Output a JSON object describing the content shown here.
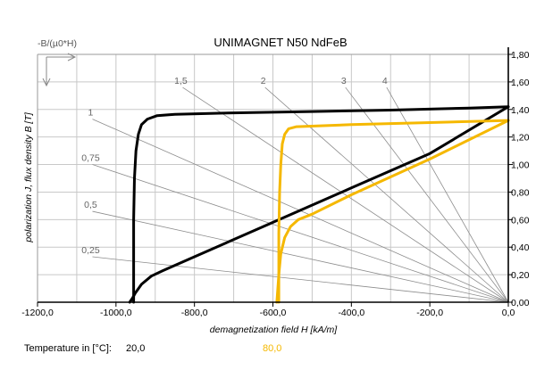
{
  "chart_data": {
    "type": "line",
    "title": "UNIMAGNET N50 NdFeB",
    "y_top_label": "-B/(µ0*H)",
    "xlabel": "demagnetization field H [kA/m]",
    "ylabel": "polarization J, flux density B [T]",
    "xlim": [
      -1200,
      0
    ],
    "ylim": [
      0,
      1.8
    ],
    "x_ticks": [
      {
        "value": -1200,
        "label": "-1200,0"
      },
      {
        "value": -1000,
        "label": "-1000,0"
      },
      {
        "value": -800,
        "label": "-800,0"
      },
      {
        "value": -600,
        "label": "-600,0"
      },
      {
        "value": -400,
        "label": "-400,0"
      },
      {
        "value": -200,
        "label": "-200,0"
      },
      {
        "value": 0,
        "label": "0,0"
      }
    ],
    "y_ticks": [
      {
        "value": 0.0,
        "label": "0,00"
      },
      {
        "value": 0.2,
        "label": "0,20"
      },
      {
        "value": 0.4,
        "label": "0,40"
      },
      {
        "value": 0.6,
        "label": "0,60"
      },
      {
        "value": 0.8,
        "label": "0,80"
      },
      {
        "value": 1.0,
        "label": "1,00"
      },
      {
        "value": 1.2,
        "label": "1,20"
      },
      {
        "value": 1.4,
        "label": "1,40"
      },
      {
        "value": 1.6,
        "label": "1,60"
      },
      {
        "value": 1.8,
        "label": "1,80"
      }
    ],
    "grid": true,
    "permeance_lines": [
      {
        "label": "0,25",
        "end": [
          -1060,
          0.33
        ]
      },
      {
        "label": "0,5",
        "end": [
          -1060,
          0.66
        ]
      },
      {
        "label": "0,75",
        "end": [
          -1060,
          1.0
        ]
      },
      {
        "label": "1",
        "end": [
          -1060,
          1.33
        ]
      },
      {
        "label": "1,5",
        "end": [
          -830,
          1.56
        ]
      },
      {
        "label": "2",
        "end": [
          -620,
          1.56
        ]
      },
      {
        "label": "3",
        "end": [
          -415,
          1.56
        ]
      },
      {
        "label": "4",
        "end": [
          -310,
          1.56
        ]
      }
    ],
    "series": [
      {
        "temperature": "20,0",
        "color": "#000000",
        "J": [
          [
            -955,
            0.0
          ],
          [
            -955,
            0.6
          ],
          [
            -953,
            0.9
          ],
          [
            -949,
            1.1
          ],
          [
            -943,
            1.22
          ],
          [
            -935,
            1.29
          ],
          [
            -920,
            1.33
          ],
          [
            -895,
            1.355
          ],
          [
            -850,
            1.365
          ],
          [
            -700,
            1.375
          ],
          [
            -500,
            1.385
          ],
          [
            -300,
            1.395
          ],
          [
            -100,
            1.41
          ],
          [
            0,
            1.42
          ]
        ],
        "B": [
          [
            -965,
            0.0
          ],
          [
            -958,
            0.03
          ],
          [
            -950,
            0.07
          ],
          [
            -935,
            0.13
          ],
          [
            -910,
            0.19
          ],
          [
            -880,
            0.23
          ],
          [
            -800,
            0.33
          ],
          [
            -600,
            0.58
          ],
          [
            -400,
            0.83
          ],
          [
            -200,
            1.08
          ],
          [
            0,
            1.42
          ]
        ]
      },
      {
        "temperature": "80,0",
        "color": "#f5b800",
        "J": [
          [
            -585,
            0.0
          ],
          [
            -585,
            0.5
          ],
          [
            -583,
            0.8
          ],
          [
            -580,
            1.0
          ],
          [
            -576,
            1.15
          ],
          [
            -570,
            1.22
          ],
          [
            -560,
            1.26
          ],
          [
            -540,
            1.275
          ],
          [
            -400,
            1.29
          ],
          [
            -200,
            1.305
          ],
          [
            0,
            1.32
          ]
        ],
        "B": [
          [
            -590,
            0.0
          ],
          [
            -585,
            0.2
          ],
          [
            -580,
            0.35
          ],
          [
            -570,
            0.47
          ],
          [
            -555,
            0.55
          ],
          [
            -535,
            0.6
          ],
          [
            -500,
            0.64
          ],
          [
            -400,
            0.78
          ],
          [
            -200,
            1.04
          ],
          [
            0,
            1.32
          ]
        ]
      }
    ]
  },
  "footer": {
    "label": "Temperature in [°C]:",
    "values": [
      "20,0",
      "80,0"
    ],
    "colors": [
      "#000000",
      "#f5b800"
    ]
  }
}
